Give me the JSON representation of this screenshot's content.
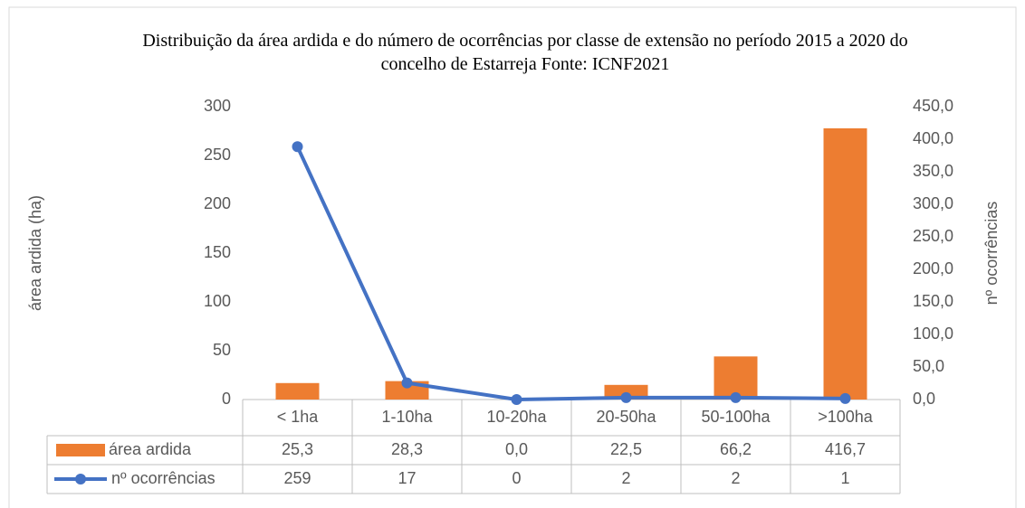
{
  "chart_data": {
    "type": "combo",
    "title": "Distribuição da área ardida e do número de ocorrências por classe de extensão no período 2015 a 2020 do concelho de Estarreja Fonte: ICNF2021",
    "y_label": "área ardida (ha)",
    "y2_label": "nº ocorrências",
    "categories": [
      "< 1ha",
      "1-10ha",
      "10-20ha",
      "20-50ha",
      "50-100ha",
      ">100ha"
    ],
    "series": [
      {
        "name": "área ardida",
        "type": "bar",
        "axis": "y2",
        "color": "#ed7d31",
        "values": [
          25.3,
          28.3,
          0.0,
          22.5,
          66.2,
          416.7
        ],
        "value_labels": [
          "25,3",
          "28,3",
          "0,0",
          "22,5",
          "66,2",
          "416,7"
        ]
      },
      {
        "name": "nº ocorrências",
        "type": "line",
        "axis": "y",
        "color": "#4472c4",
        "values": [
          259,
          17,
          0,
          2,
          2,
          1
        ]
      }
    ],
    "ylim": [
      0,
      300
    ],
    "yticks": [
      0,
      50,
      100,
      150,
      200,
      250,
      300
    ],
    "y2lim": [
      0,
      450
    ],
    "y2ticks": [
      {
        "value": 0,
        "label": "0,0"
      },
      {
        "value": 50,
        "label": "50,0"
      },
      {
        "value": 100,
        "label": "100,0"
      },
      {
        "value": 150,
        "label": "150,0"
      },
      {
        "value": 200,
        "label": "200,0"
      },
      {
        "value": 250,
        "label": "250,0"
      },
      {
        "value": 300,
        "label": "300,0"
      },
      {
        "value": 350,
        "label": "350,0"
      },
      {
        "value": 400,
        "label": "400,0"
      },
      {
        "value": 450,
        "label": "450,0"
      }
    ],
    "grid": false
  }
}
